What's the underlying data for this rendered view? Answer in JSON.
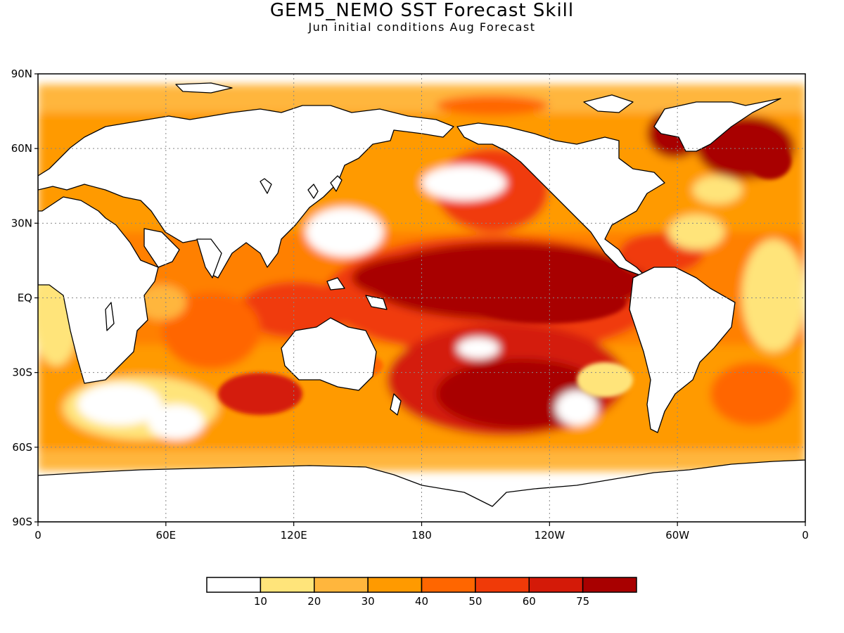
{
  "title": "GEM5_NEMO SST Forecast Skill",
  "subtitle": "Jun initial conditions  Aug Forecast",
  "map": {
    "projection": "equirectangular",
    "lon_range": [
      0,
      360
    ],
    "lat_range": [
      -90,
      90
    ],
    "grid": true,
    "lat_ticks": [
      {
        "value": 90,
        "label": "90N"
      },
      {
        "value": 60,
        "label": "60N"
      },
      {
        "value": 30,
        "label": "30N"
      },
      {
        "value": 0,
        "label": "EQ"
      },
      {
        "value": -30,
        "label": "30S"
      },
      {
        "value": -60,
        "label": "60S"
      },
      {
        "value": -90,
        "label": "90S"
      }
    ],
    "lon_ticks": [
      {
        "value": 0,
        "label": "0"
      },
      {
        "value": 60,
        "label": "60E"
      },
      {
        "value": 120,
        "label": "120E"
      },
      {
        "value": 180,
        "label": "180"
      },
      {
        "value": 240,
        "label": "120W"
      },
      {
        "value": 300,
        "label": "60W"
      },
      {
        "value": 360,
        "label": "0"
      }
    ]
  },
  "colorbar": {
    "colors": [
      "#ffffff",
      "#ffe47a",
      "#ffb63d",
      "#ff9a00",
      "#ff6600",
      "#f03a08",
      "#d41a08",
      "#a80000"
    ],
    "labels": [
      "10",
      "20",
      "30",
      "40",
      "50",
      "60",
      "75"
    ]
  }
}
